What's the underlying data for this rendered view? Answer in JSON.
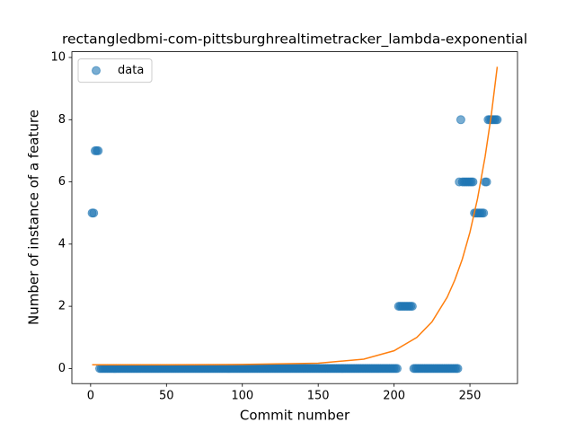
{
  "chart_data": {
    "type": "scatter",
    "title": "rectangledbmi-com-pittsburghrealtimetracker_lambda-exponential",
    "x_label": "Commit number",
    "y_label": "Number of instance of a feature",
    "legend": "upper left",
    "xlim": [
      -12.35,
      281.35
    ],
    "xticks": [
      0,
      50,
      100,
      150,
      200,
      250
    ],
    "ylim": [
      -0.485,
      10.185
    ],
    "yticks": [
      0,
      2,
      4,
      6,
      8,
      10
    ],
    "series": [
      {
        "name": "data",
        "color": "#1f77b4",
        "type": "scatter",
        "x": [
          1,
          2,
          3,
          4,
          5,
          6,
          7,
          8,
          9,
          10,
          11,
          12,
          13,
          14,
          15,
          16,
          17,
          18,
          19,
          20,
          21,
          22,
          23,
          24,
          25,
          26,
          27,
          28,
          29,
          30,
          31,
          32,
          33,
          34,
          35,
          36,
          37,
          38,
          39,
          40,
          41,
          42,
          43,
          44,
          45,
          46,
          47,
          48,
          49,
          50,
          51,
          52,
          53,
          54,
          55,
          56,
          57,
          58,
          59,
          60,
          61,
          62,
          63,
          64,
          65,
          66,
          67,
          68,
          69,
          70,
          71,
          72,
          73,
          74,
          75,
          76,
          77,
          78,
          79,
          80,
          81,
          82,
          83,
          84,
          85,
          86,
          87,
          88,
          89,
          90,
          91,
          92,
          93,
          94,
          95,
          96,
          97,
          98,
          99,
          100,
          101,
          102,
          103,
          104,
          105,
          106,
          107,
          108,
          109,
          110,
          111,
          112,
          113,
          114,
          115,
          116,
          117,
          118,
          119,
          120,
          121,
          122,
          123,
          124,
          125,
          126,
          127,
          128,
          129,
          130,
          131,
          132,
          133,
          134,
          135,
          136,
          137,
          138,
          139,
          140,
          141,
          142,
          143,
          144,
          145,
          146,
          147,
          148,
          149,
          150,
          151,
          152,
          153,
          154,
          155,
          156,
          157,
          158,
          159,
          160,
          161,
          162,
          163,
          164,
          165,
          166,
          167,
          168,
          169,
          170,
          171,
          172,
          173,
          174,
          175,
          176,
          177,
          178,
          179,
          180,
          181,
          182,
          183,
          184,
          185,
          186,
          187,
          188,
          189,
          190,
          191,
          192,
          193,
          194,
          195,
          196,
          197,
          198,
          199,
          200,
          201,
          202,
          203,
          204,
          205,
          206,
          207,
          208,
          209,
          210,
          211,
          212,
          213,
          214,
          215,
          216,
          217,
          218,
          219,
          220,
          221,
          222,
          223,
          224,
          225,
          226,
          227,
          228,
          229,
          230,
          231,
          232,
          233,
          234,
          235,
          236,
          237,
          238,
          239,
          240,
          241,
          242,
          243,
          244,
          245,
          246,
          247,
          248,
          249,
          250,
          251,
          252,
          253,
          254,
          255,
          256,
          257,
          258,
          259,
          260,
          261,
          262,
          263,
          264,
          265,
          266,
          267,
          268
        ],
        "values": [
          5,
          5,
          7,
          7,
          7,
          0,
          0,
          0,
          0,
          0,
          0,
          0,
          0,
          0,
          0,
          0,
          0,
          0,
          0,
          0,
          0,
          0,
          0,
          0,
          0,
          0,
          0,
          0,
          0,
          0,
          0,
          0,
          0,
          0,
          0,
          0,
          0,
          0,
          0,
          0,
          0,
          0,
          0,
          0,
          0,
          0,
          0,
          0,
          0,
          0,
          0,
          0,
          0,
          0,
          0,
          0,
          0,
          0,
          0,
          0,
          0,
          0,
          0,
          0,
          0,
          0,
          0,
          0,
          0,
          0,
          0,
          0,
          0,
          0,
          0,
          0,
          0,
          0,
          0,
          0,
          0,
          0,
          0,
          0,
          0,
          0,
          0,
          0,
          0,
          0,
          0,
          0,
          0,
          0,
          0,
          0,
          0,
          0,
          0,
          0,
          0,
          0,
          0,
          0,
          0,
          0,
          0,
          0,
          0,
          0,
          0,
          0,
          0,
          0,
          0,
          0,
          0,
          0,
          0,
          0,
          0,
          0,
          0,
          0,
          0,
          0,
          0,
          0,
          0,
          0,
          0,
          0,
          0,
          0,
          0,
          0,
          0,
          0,
          0,
          0,
          0,
          0,
          0,
          0,
          0,
          0,
          0,
          0,
          0,
          0,
          0,
          0,
          0,
          0,
          0,
          0,
          0,
          0,
          0,
          0,
          0,
          0,
          0,
          0,
          0,
          0,
          0,
          0,
          0,
          0,
          0,
          0,
          0,
          0,
          0,
          0,
          0,
          0,
          0,
          0,
          0,
          0,
          0,
          0,
          0,
          0,
          0,
          0,
          0,
          0,
          0,
          0,
          0,
          0,
          0,
          0,
          0,
          0,
          0,
          0,
          0,
          0,
          2,
          2,
          2,
          2,
          2,
          2,
          2,
          2,
          2,
          2,
          0,
          0,
          0,
          0,
          0,
          0,
          0,
          0,
          0,
          0,
          0,
          0,
          0,
          0,
          0,
          0,
          0,
          0,
          0,
          0,
          0,
          0,
          0,
          0,
          0,
          0,
          0,
          0,
          0,
          0,
          6,
          8,
          6,
          6,
          6,
          6,
          6,
          6,
          6,
          6,
          5,
          5,
          5,
          5,
          5,
          5,
          5,
          6,
          6,
          8,
          8,
          8,
          8,
          8,
          8,
          8
        ]
      },
      {
        "color": "#ff7f0e",
        "type": "line",
        "x": [
          1,
          50,
          100,
          150,
          180,
          200,
          215,
          225,
          235,
          240,
          245,
          250,
          255,
          260,
          264,
          268
        ],
        "values": [
          0.12,
          0.12,
          0.13,
          0.17,
          0.3,
          0.57,
          1.0,
          1.5,
          2.29,
          2.84,
          3.52,
          4.38,
          5.46,
          6.81,
          8.12,
          9.7
        ]
      }
    ]
  }
}
